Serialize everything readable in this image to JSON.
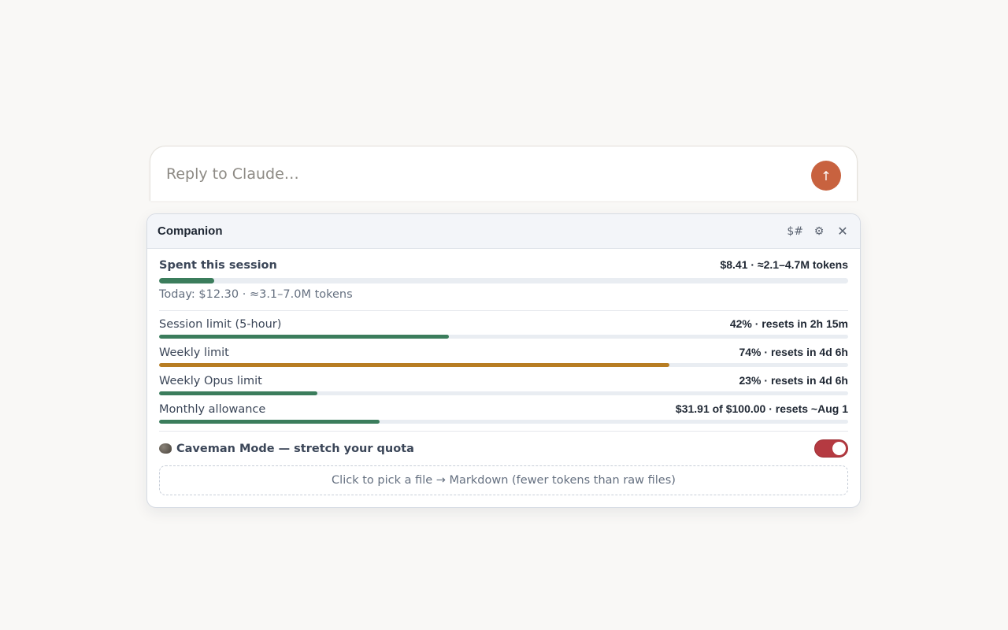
{
  "composer": {
    "placeholder": "Reply to Claude…",
    "send_icon": "↑"
  },
  "companion": {
    "title": "Companion",
    "header_buttons": {
      "cost_label": "$#",
      "settings_icon": "⚙",
      "close_icon": "✕"
    },
    "session": {
      "label": "Spent this session",
      "value": "$8.41 · ≈2.1–4.7M tokens",
      "progress": 0.08,
      "today": "Today: $12.30 · ≈3.1–7.0M tokens"
    },
    "limits": [
      {
        "label": "Session limit (5-hour)",
        "value": "42% · resets in 2h 15m",
        "progress": 0.42,
        "color": "#3b7d5c"
      },
      {
        "label": "Weekly limit",
        "value": "74% · resets in 4d 6h",
        "progress": 0.74,
        "color": "#b87d22"
      },
      {
        "label": "Weekly Opus limit",
        "value": "23% · resets in 4d 6h",
        "progress": 0.23,
        "color": "#3b7d5c"
      },
      {
        "label": "Monthly allowance",
        "value": "$31.91 of $100.00 · resets ~Aug 1",
        "progress": 0.32,
        "color": "#3b7d5c"
      }
    ],
    "caveman": {
      "label": "Caveman Mode — stretch your quota",
      "icon": "rock-icon",
      "enabled": true
    },
    "dropzone": {
      "label": "Click to pick a file → Markdown (fewer tokens than raw files)"
    },
    "colors": {
      "accent_green": "#3b7d5c",
      "accent_amber": "#b87d22",
      "toggle_on": "#b53a41",
      "send_button": "#c8623f"
    }
  }
}
